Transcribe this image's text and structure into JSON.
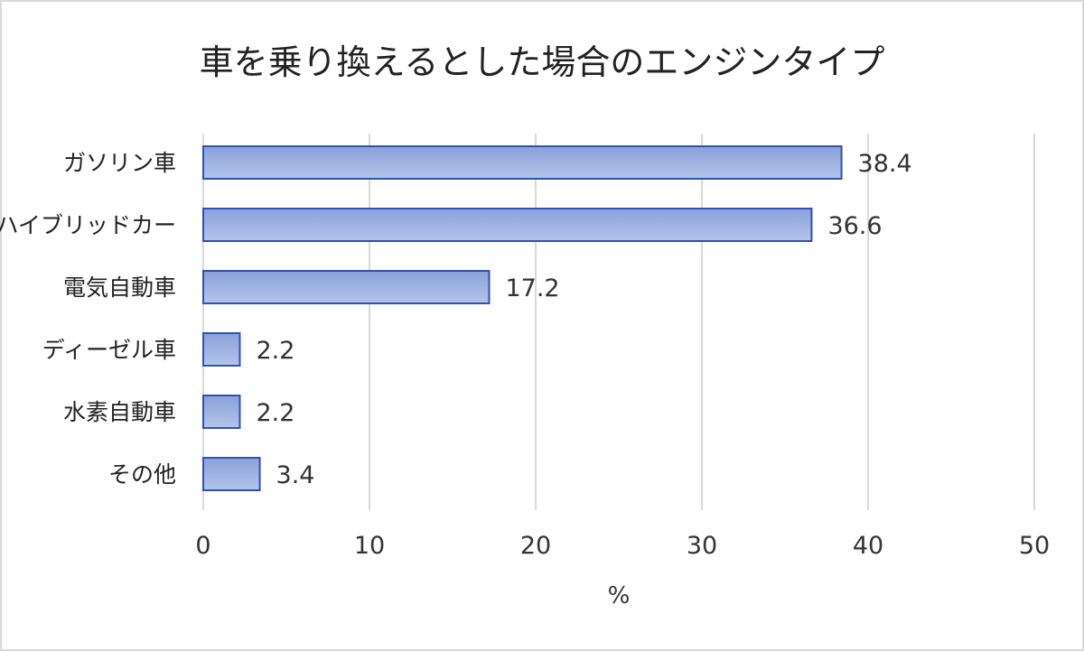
{
  "chart_data": {
    "type": "bar",
    "orientation": "horizontal",
    "title": "車を乗り換えるとした場合のエンジンタイプ",
    "xlabel": "%",
    "ylabel": "",
    "categories": [
      "ガソリン車",
      "ハイブリッドカー",
      "電気自動車",
      "ディーゼル車",
      "水素自動車",
      "その他"
    ],
    "values": [
      38.4,
      36.6,
      17.2,
      2.2,
      2.2,
      3.4
    ],
    "data_labels": [
      "38.4",
      "36.6",
      "17.2",
      "2.2",
      "2.2",
      "3.4"
    ],
    "xlim": [
      0,
      50
    ],
    "x_ticks": [
      0,
      10,
      20,
      30,
      40,
      50
    ],
    "x_tick_labels": [
      "0",
      "10",
      "20",
      "30",
      "40",
      "50"
    ],
    "grid": "vertical",
    "legend": "none",
    "colors": {
      "bar_fill_light": "#b4c4ea",
      "bar_fill_dark": "#8aa0d8",
      "bar_stroke": "#2f52b4",
      "grid": "#d9d9d9",
      "text": "#333333"
    }
  }
}
